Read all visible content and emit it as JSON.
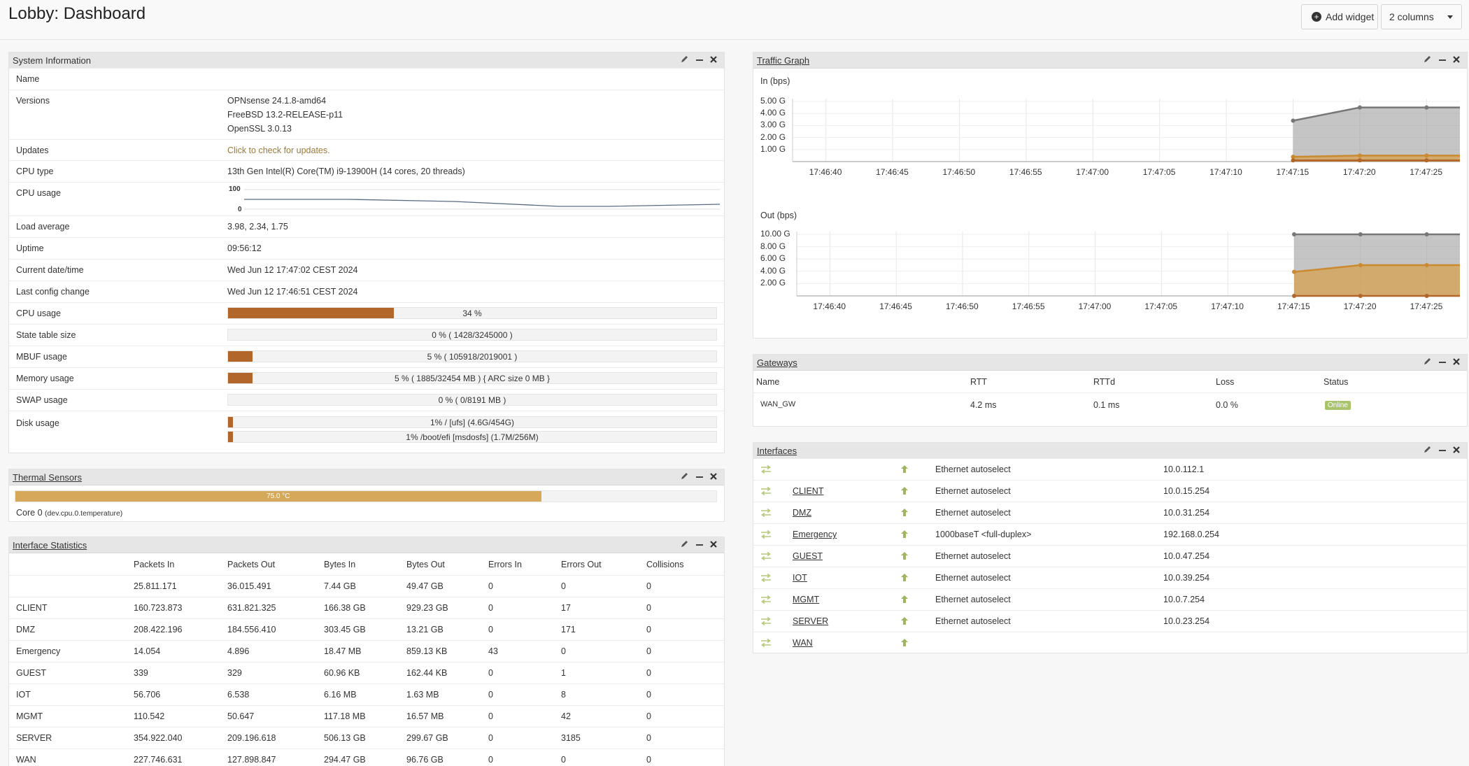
{
  "header": {
    "title": "Lobby: Dashboard",
    "add_widget": "Add widget",
    "columns": "2 columns"
  },
  "colors": {
    "accent": "#b26629",
    "thermal": "#d6a95a",
    "online": "#a9c36d"
  },
  "icons": {
    "edit": "pencil-icon",
    "minimize": "minus-icon",
    "close": "close-icon",
    "add": "plus-circle-icon",
    "link": "swap-icon",
    "up": "arrow-up-icon"
  },
  "system_info": {
    "title": "System Information",
    "rows": [
      {
        "label": "Name",
        "value": ""
      },
      {
        "label": "Versions",
        "lines": [
          "OPNsense 24.1.8-amd64",
          "FreeBSD 13.2-RELEASE-p11",
          "OpenSSL 3.0.13"
        ]
      },
      {
        "label": "Updates",
        "value": "Click to check for updates."
      },
      {
        "label": "CPU type",
        "value": "13th Gen Intel(R) Core(TM) i9-13900H (14 cores, 20 threads)"
      },
      {
        "label": "CPU usage",
        "chart_max": "100",
        "chart_min": "0"
      },
      {
        "label": "Load average",
        "value": "3.98, 2.34, 1.75"
      },
      {
        "label": "Uptime",
        "value": "09:56:12"
      },
      {
        "label": "Current date/time",
        "value": "Wed Jun 12 17:47:02 CEST 2024"
      },
      {
        "label": "Last config change",
        "value": "Wed Jun 12 17:46:51 CEST 2024"
      }
    ],
    "bars": [
      {
        "label": "CPU usage",
        "text": "34 %",
        "fraction": 0.34
      },
      {
        "label": "State table size",
        "text": "0 % ( 1428/3245000 )",
        "fraction": 0.0
      },
      {
        "label": "MBUF usage",
        "text": "5 % ( 105918/2019001 )",
        "fraction": 0.05
      },
      {
        "label": "Memory usage",
        "text": "5 % ( 1885/32454 MB ) { ARC size 0 MB }",
        "fraction": 0.05
      },
      {
        "label": "SWAP usage",
        "text": "0 % ( 0/8191 MB )",
        "fraction": 0.0
      }
    ],
    "disk": {
      "label": "Disk usage",
      "items": [
        {
          "text": "1% / [ufs] (4.6G/454G)",
          "fraction": 0.01
        },
        {
          "text": "1% /boot/efi [msdosfs] (1.7M/256M)",
          "fraction": 0.01
        }
      ]
    }
  },
  "thermal": {
    "title": "Thermal Sensors",
    "sensor_value": "75.0 °C",
    "fraction": 0.75,
    "sensor_label": "Core 0",
    "sensor_source": "(dev.cpu.0.temperature)"
  },
  "iface_stats": {
    "title": "Interface Statistics",
    "columns": [
      "Packets In",
      "Packets Out",
      "Bytes In",
      "Bytes Out",
      "Errors In",
      "Errors Out",
      "Collisions"
    ],
    "rows": [
      {
        "name": "",
        "vals": [
          "25.811.171",
          "36.015.491",
          "7.44 GB",
          "49.47 GB",
          "0",
          "0",
          "0"
        ]
      },
      {
        "name": "CLIENT",
        "vals": [
          "160.723.873",
          "631.821.325",
          "166.38 GB",
          "929.23 GB",
          "0",
          "17",
          "0"
        ]
      },
      {
        "name": "DMZ",
        "vals": [
          "208.422.196",
          "184.556.410",
          "303.45 GB",
          "13.21 GB",
          "0",
          "171",
          "0"
        ]
      },
      {
        "name": "Emergency",
        "vals": [
          "14.054",
          "4.896",
          "18.47 MB",
          "859.13 KB",
          "43",
          "0",
          "0"
        ]
      },
      {
        "name": "GUEST",
        "vals": [
          "339",
          "329",
          "60.96 KB",
          "162.44 KB",
          "0",
          "1",
          "0"
        ]
      },
      {
        "name": "IOT",
        "vals": [
          "56.706",
          "6.538",
          "6.16 MB",
          "1.63 MB",
          "0",
          "8",
          "0"
        ]
      },
      {
        "name": "MGMT",
        "vals": [
          "110.542",
          "50.647",
          "117.18 MB",
          "16.57 MB",
          "0",
          "42",
          "0"
        ]
      },
      {
        "name": "SERVER",
        "vals": [
          "354.922.040",
          "209.196.618",
          "506.13 GB",
          "299.67 GB",
          "0",
          "3185",
          "0"
        ]
      },
      {
        "name": "WAN",
        "vals": [
          "227.746.631",
          "127.898.847",
          "294.47 GB",
          "96.76 GB",
          "0",
          "0",
          "0"
        ]
      }
    ]
  },
  "traffic": {
    "title": "Traffic Graph",
    "in_label": "In (bps)",
    "out_label": "Out (bps)",
    "in_ticks": [
      "5.00 G",
      "4.00 G",
      "3.00 G",
      "2.00 G",
      "1.00 G"
    ],
    "out_ticks": [
      "10.00 G",
      "8.00 G",
      "6.00 G",
      "4.00 G",
      "2.00 G"
    ],
    "times": [
      "17:46:40",
      "17:46:45",
      "17:46:50",
      "17:46:55",
      "17:47:00",
      "17:47:05",
      "17:47:10",
      "17:47:15",
      "17:47:20",
      "17:47:25"
    ]
  },
  "chart_data": [
    {
      "type": "area",
      "title": "",
      "ylabel": "In (bps)",
      "x": [
        "17:47:15",
        "17:47:20",
        "17:47:25"
      ],
      "ylim": [
        0,
        5.0
      ],
      "series": [
        {
          "values": [
            3.4,
            4.5,
            4.5
          ]
        },
        {
          "values": [
            0.4,
            0.5,
            0.5
          ]
        },
        {
          "values": [
            0.1,
            0.1,
            0.1
          ]
        }
      ]
    },
    {
      "type": "area",
      "title": "",
      "ylabel": "Out (bps)",
      "x": [
        "17:47:15",
        "17:47:20",
        "17:47:25"
      ],
      "ylim": [
        0,
        10.0
      ],
      "series": [
        {
          "values": [
            10.0,
            10.0,
            10.0
          ]
        },
        {
          "values": [
            3.9,
            5.0,
            5.0
          ]
        },
        {
          "values": [
            0.0,
            0.0,
            0.0
          ]
        }
      ]
    }
  ],
  "gateways": {
    "title": "Gateways",
    "columns": [
      "Name",
      "RTT",
      "RTTd",
      "Loss",
      "Status"
    ],
    "rows": [
      {
        "name": "WAN_GW",
        "rtt": "4.2 ms",
        "rttd": "0.1 ms",
        "loss": "0.0 %",
        "status": "Online"
      }
    ]
  },
  "interfaces": {
    "title": "Interfaces",
    "rows": [
      {
        "name": "",
        "media": "Ethernet autoselect",
        "ip": "10.0.112.1"
      },
      {
        "name": "CLIENT",
        "media": "Ethernet autoselect",
        "ip": "10.0.15.254"
      },
      {
        "name": "DMZ",
        "media": "Ethernet autoselect",
        "ip": "10.0.31.254"
      },
      {
        "name": "Emergency",
        "media": "1000baseT <full-duplex>",
        "ip": "192.168.0.254"
      },
      {
        "name": "GUEST",
        "media": "Ethernet autoselect",
        "ip": "10.0.47.254"
      },
      {
        "name": "IOT",
        "media": "Ethernet autoselect",
        "ip": "10.0.39.254"
      },
      {
        "name": "MGMT",
        "media": "Ethernet autoselect",
        "ip": "10.0.7.254"
      },
      {
        "name": "SERVER",
        "media": "Ethernet autoselect",
        "ip": "10.0.23.254"
      },
      {
        "name": "WAN",
        "media": "",
        "ip": ""
      }
    ]
  }
}
